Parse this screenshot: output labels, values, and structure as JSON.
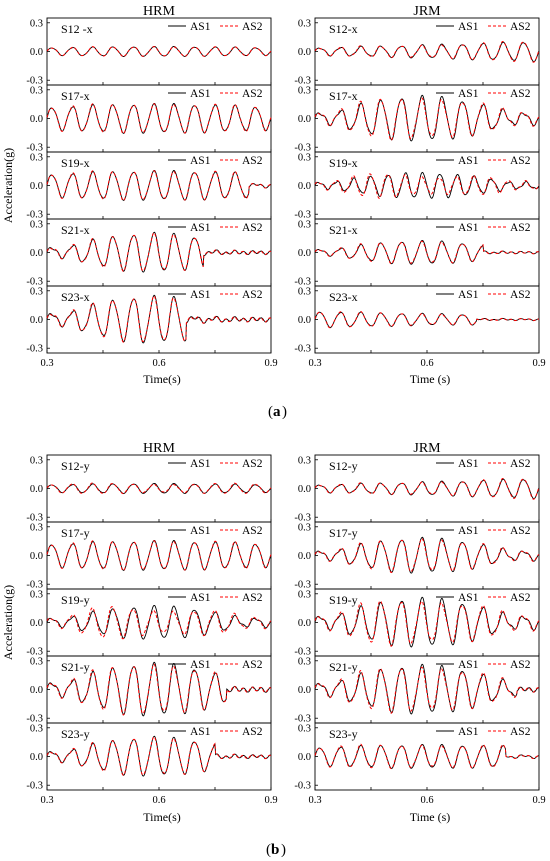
{
  "figure": {
    "caption_a": "a",
    "caption_b": "b"
  },
  "chart_data": [
    {
      "part": "a",
      "model": "HRM",
      "direction": "x",
      "type": "line",
      "xlabel": "Time(s)",
      "ylabel": "Acceleration(g)",
      "xlim": [
        0.3,
        0.9
      ],
      "ylim": [
        -0.35,
        0.35
      ],
      "xticks": [
        "0.3",
        "0.6",
        "0.9"
      ],
      "yticks": [
        "0.3",
        "0.0",
        "-0.3"
      ],
      "legend": [
        "AS1",
        "AS2"
      ],
      "series_colors": {
        "AS1": "#000000",
        "AS2": "#ff0000"
      },
      "subplots": [
        {
          "label": "S12 -x",
          "amp": 0.05,
          "cycles": 11,
          "envelope": "flat",
          "tail": 1.0,
          "diff": 0.05
        },
        {
          "label": "S17-x",
          "amp": 0.15,
          "cycles": 11,
          "envelope": "flat",
          "tail": 1.0,
          "diff": 0.05
        },
        {
          "label": "S19-x",
          "amp": 0.15,
          "cycles": 11,
          "envelope": "flat",
          "tail": 0.9,
          "diff": 0.05
        },
        {
          "label": "S21-x",
          "amp": 0.2,
          "cycles": 11,
          "envelope": "hump",
          "tail": 0.7,
          "diff": 0.05
        },
        {
          "label": "S23-x",
          "amp": 0.24,
          "cycles": 11,
          "envelope": "hump",
          "tail": 0.62,
          "diff": 0.05
        }
      ]
    },
    {
      "part": "a",
      "model": "JRM",
      "direction": "x",
      "type": "line",
      "xlabel": "Time (s)",
      "ylabel": "",
      "xlim": [
        0.3,
        0.9
      ],
      "ylim": [
        -0.35,
        0.35
      ],
      "xticks": [
        "0.3",
        "0.6",
        "0.9"
      ],
      "yticks": [
        "0.3",
        "0.0",
        "-0.3"
      ],
      "legend": [
        "AS1",
        "AS2"
      ],
      "series_colors": {
        "AS1": "#000000",
        "AS2": "#ff0000"
      },
      "subplots": [
        {
          "label": "S12-x",
          "amp": 0.1,
          "cycles": 11,
          "envelope": "rise",
          "tail": 1.0,
          "diff": 0.1
        },
        {
          "label": "S17-x",
          "amp": 0.23,
          "cycles": 11,
          "envelope": "hump",
          "tail": 1.0,
          "diff": 0.15
        },
        {
          "label": "S19-x",
          "amp": 0.13,
          "cycles": 13,
          "envelope": "hump",
          "tail": 1.0,
          "diff": 0.35
        },
        {
          "label": "S21-x",
          "amp": 0.12,
          "cycles": 11,
          "envelope": "hump",
          "tail": 0.75,
          "diff": 0.1
        },
        {
          "label": "S23-x",
          "amp": 0.08,
          "cycles": 11,
          "envelope": "decay",
          "tail": 0.72,
          "diff": 0.08
        }
      ]
    },
    {
      "part": "b",
      "model": "HRM",
      "direction": "y",
      "type": "line",
      "xlabel": "Time(s)",
      "ylabel": "Acceleration(g)",
      "xlim": [
        0.3,
        0.9
      ],
      "ylim": [
        -0.35,
        0.35
      ],
      "xticks": [
        "0.3",
        "0.6",
        "0.9"
      ],
      "yticks": [
        "0.3",
        "0.0",
        "-0.3"
      ],
      "legend": [
        "AS1",
        "AS2"
      ],
      "series_colors": {
        "AS1": "#000000",
        "AS2": "#ff0000"
      },
      "subplots": [
        {
          "label": "S12-y",
          "amp": 0.05,
          "cycles": 11,
          "envelope": "flat",
          "tail": 1.0,
          "diff": 0.2
        },
        {
          "label": "S17-y",
          "amp": 0.15,
          "cycles": 11,
          "envelope": "flat",
          "tail": 1.0,
          "diff": 0.05
        },
        {
          "label": "S19-y",
          "amp": 0.17,
          "cycles": 11,
          "envelope": "hump",
          "tail": 1.0,
          "diff": 0.35
        },
        {
          "label": "S21-y",
          "amp": 0.27,
          "cycles": 11,
          "envelope": "hump",
          "tail": 0.8,
          "diff": 0.1
        },
        {
          "label": "S23-y",
          "amp": 0.2,
          "cycles": 11,
          "envelope": "hump",
          "tail": 0.75,
          "diff": 0.05
        }
      ]
    },
    {
      "part": "b",
      "model": "JRM",
      "direction": "y",
      "type": "line",
      "xlabel": "Time (s)",
      "ylabel": "",
      "xlim": [
        0.3,
        0.9
      ],
      "ylim": [
        -0.35,
        0.35
      ],
      "xticks": [
        "0.3",
        "0.6",
        "0.9"
      ],
      "yticks": [
        "0.3",
        "0.0",
        "-0.3"
      ],
      "legend": [
        "AS1",
        "AS2"
      ],
      "series_colors": {
        "AS1": "#000000",
        "AS2": "#ff0000"
      },
      "subplots": [
        {
          "label": "S12-y",
          "amp": 0.1,
          "cycles": 11,
          "envelope": "rise",
          "tail": 1.0,
          "diff": 0.1
        },
        {
          "label": "S17-y",
          "amp": 0.18,
          "cycles": 11,
          "envelope": "hump",
          "tail": 1.0,
          "diff": 0.1
        },
        {
          "label": "S19-y",
          "amp": 0.25,
          "cycles": 11,
          "envelope": "hump",
          "tail": 1.0,
          "diff": 0.2
        },
        {
          "label": "S21-y",
          "amp": 0.25,
          "cycles": 11,
          "envelope": "hump",
          "tail": 0.9,
          "diff": 0.15
        },
        {
          "label": "S23-y",
          "amp": 0.12,
          "cycles": 11,
          "envelope": "flat",
          "tail": 0.85,
          "diff": 0.1
        }
      ]
    }
  ]
}
